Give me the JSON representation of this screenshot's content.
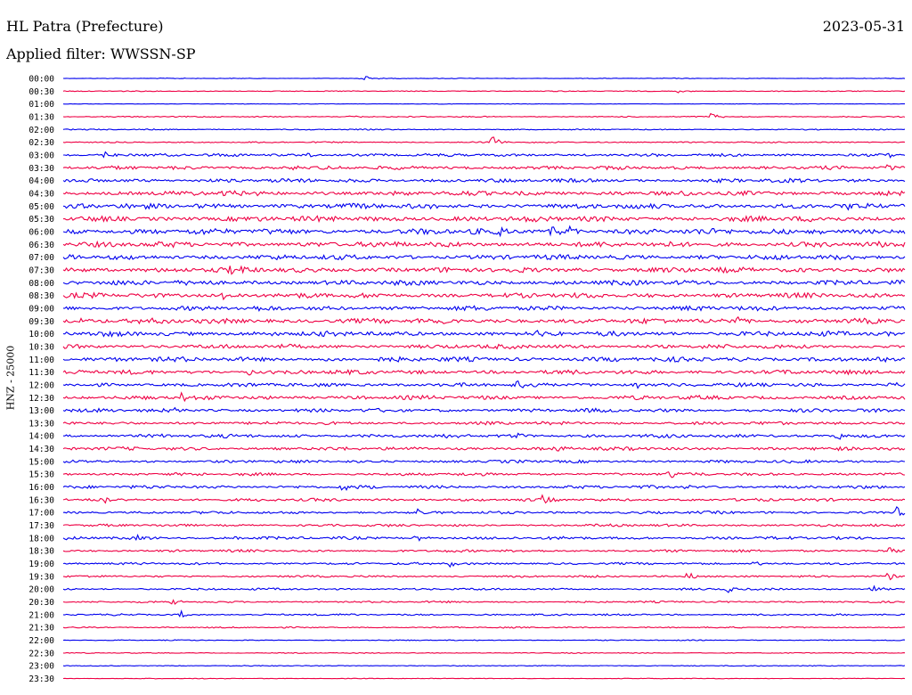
{
  "header": {
    "station": "HL Patra (Prefecture)",
    "date": "2023-05-31",
    "filter": "Applied filter: WWSSN-SP"
  },
  "axis": {
    "ylabel": "HNZ - 25000"
  },
  "colors": {
    "trace_a": "#0000ee",
    "trace_b": "#ee0044"
  },
  "chart_data": {
    "type": "line",
    "title": "HL Patra (Prefecture)",
    "subtitle": "Applied filter: WWSSN-SP",
    "ylabel": "HNZ - 25000",
    "xlabel": "",
    "row_labels": [
      "00:00",
      "00:30",
      "01:00",
      "01:30",
      "02:00",
      "02:30",
      "03:00",
      "03:30",
      "04:00",
      "04:30",
      "05:00",
      "05:30",
      "06:00",
      "06:30",
      "07:00",
      "07:30",
      "08:00",
      "08:30",
      "09:00",
      "09:30",
      "10:00",
      "10:30",
      "11:00",
      "11:30",
      "12:00",
      "12:30",
      "13:00",
      "13:30",
      "14:00",
      "14:30",
      "15:00",
      "15:30",
      "16:00",
      "16:30",
      "17:00",
      "17:30",
      "18:00",
      "18:30",
      "19:00",
      "19:30",
      "20:00",
      "20:30",
      "21:00",
      "21:30",
      "22:00",
      "22:30",
      "23:00",
      "23:30"
    ],
    "noise_level": [
      0.3,
      0.4,
      0.2,
      0.5,
      0.5,
      0.6,
      1.3,
      1.6,
      1.7,
      2.1,
      2.3,
      2.4,
      2.6,
      2.4,
      2.2,
      2.3,
      2.2,
      2.2,
      2.1,
      2.3,
      2.2,
      1.9,
      2.1,
      1.9,
      1.7,
      1.8,
      1.6,
      1.4,
      1.6,
      1.5,
      1.3,
      1.3,
      1.4,
      1.3,
      1.2,
      1.1,
      1.3,
      1.1,
      1.0,
      0.9,
      0.9,
      0.8,
      0.8,
      0.6,
      0.4,
      0.4,
      0.4,
      0.3
    ],
    "events": [
      {
        "row": 0,
        "t": 0.355,
        "amp": 5
      },
      {
        "row": 1,
        "t": 0.73,
        "amp": 2
      },
      {
        "row": 3,
        "t": 0.77,
        "amp": 5
      },
      {
        "row": 3,
        "t": 0.34,
        "amp": 2
      },
      {
        "row": 5,
        "t": 0.51,
        "amp": 8
      },
      {
        "row": 6,
        "t": 0.05,
        "amp": 4
      },
      {
        "row": 6,
        "t": 0.29,
        "amp": 3
      },
      {
        "row": 6,
        "t": 0.98,
        "amp": 4
      },
      {
        "row": 7,
        "t": 0.27,
        "amp": 3
      },
      {
        "row": 7,
        "t": 0.98,
        "amp": 3
      },
      {
        "row": 9,
        "t": 0.19,
        "amp": 4
      },
      {
        "row": 10,
        "t": 0.93,
        "amp": 3
      },
      {
        "row": 12,
        "t": 0.52,
        "amp": 10
      },
      {
        "row": 12,
        "t": 0.58,
        "amp": 8
      },
      {
        "row": 12,
        "t": 0.6,
        "amp": 10
      },
      {
        "row": 12,
        "t": 0.89,
        "amp": 4
      },
      {
        "row": 15,
        "t": 0.2,
        "amp": 5
      },
      {
        "row": 15,
        "t": 0.74,
        "amp": 4
      },
      {
        "row": 17,
        "t": 0.19,
        "amp": 6
      },
      {
        "row": 19,
        "t": 0.01,
        "amp": 4
      },
      {
        "row": 19,
        "t": 0.44,
        "amp": 4
      },
      {
        "row": 19,
        "t": 0.8,
        "amp": 5
      },
      {
        "row": 20,
        "t": 0.56,
        "amp": 6
      },
      {
        "row": 22,
        "t": 0.69,
        "amp": 4
      },
      {
        "row": 23,
        "t": 0.22,
        "amp": 4
      },
      {
        "row": 24,
        "t": 0.54,
        "amp": 6
      },
      {
        "row": 24,
        "t": 0.68,
        "amp": 5
      },
      {
        "row": 24,
        "t": 0.98,
        "amp": 4
      },
      {
        "row": 25,
        "t": 0.14,
        "amp": 4
      },
      {
        "row": 26,
        "t": 0.13,
        "amp": 4
      },
      {
        "row": 28,
        "t": 0.54,
        "amp": 4
      },
      {
        "row": 28,
        "t": 0.92,
        "amp": 5
      },
      {
        "row": 29,
        "t": 0.59,
        "amp": 5
      },
      {
        "row": 31,
        "t": 0.72,
        "amp": 5
      },
      {
        "row": 32,
        "t": 0.33,
        "amp": 4
      },
      {
        "row": 32,
        "t": 0.74,
        "amp": 4
      },
      {
        "row": 33,
        "t": 0.05,
        "amp": 7
      },
      {
        "row": 33,
        "t": 0.57,
        "amp": 5
      },
      {
        "row": 34,
        "t": 0.42,
        "amp": 4
      },
      {
        "row": 34,
        "t": 0.99,
        "amp": 7
      },
      {
        "row": 36,
        "t": 0.09,
        "amp": 5
      },
      {
        "row": 36,
        "t": 0.2,
        "amp": 4
      },
      {
        "row": 36,
        "t": 0.42,
        "amp": 4
      },
      {
        "row": 37,
        "t": 0.98,
        "amp": 4
      },
      {
        "row": 38,
        "t": 0.46,
        "amp": 4
      },
      {
        "row": 38,
        "t": 0.82,
        "amp": 4
      },
      {
        "row": 39,
        "t": 0.74,
        "amp": 7
      },
      {
        "row": 39,
        "t": 0.98,
        "amp": 5
      },
      {
        "row": 40,
        "t": 0.79,
        "amp": 6
      },
      {
        "row": 40,
        "t": 0.96,
        "amp": 6
      },
      {
        "row": 41,
        "t": 0.13,
        "amp": 3
      },
      {
        "row": 42,
        "t": 0.14,
        "amp": 4
      },
      {
        "row": 42,
        "t": 0.33,
        "amp": 3
      }
    ]
  }
}
